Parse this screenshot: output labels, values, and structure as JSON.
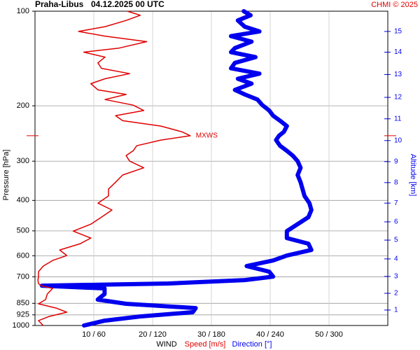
{
  "chart_data": {
    "type": "line",
    "title": "Praha-Libus",
    "subtitle": "04.12.2025 00 UTC",
    "credit": "CHMI © 2025",
    "y_label": "Pressure [hPa]",
    "y2_label": "Altitude [km]",
    "x_label": "WIND",
    "ylog": true,
    "grid": true,
    "ylim": [
      100,
      1000
    ],
    "yticks": [
      100,
      200,
      300,
      400,
      500,
      600,
      700,
      850,
      925,
      1000
    ],
    "xlim": [
      0,
      60
    ],
    "x2lim": [
      0,
      360
    ],
    "xticks": [
      {
        "value": 10,
        "label": "10 / 60"
      },
      {
        "value": 20,
        "label": "20 / 120"
      },
      {
        "value": 30,
        "label": "30 / 180"
      },
      {
        "value": 40,
        "label": "40 / 240"
      },
      {
        "value": 50,
        "label": "50 / 300"
      }
    ],
    "y2ticks": [
      {
        "value": 1,
        "pressure": 893
      },
      {
        "value": 2,
        "pressure": 790
      },
      {
        "value": 3,
        "pressure": 698
      },
      {
        "value": 4,
        "pressure": 614
      },
      {
        "value": 5,
        "pressure": 535
      },
      {
        "value": 6,
        "pressure": 468
      },
      {
        "value": 7,
        "pressure": 408
      },
      {
        "value": 8,
        "pressure": 351
      },
      {
        "value": 9,
        "pressure": 301
      },
      {
        "value": 10,
        "pressure": 258
      },
      {
        "value": 11,
        "pressure": 220
      },
      {
        "value": 12,
        "pressure": 188
      },
      {
        "value": 13,
        "pressure": 159
      },
      {
        "value": 14,
        "pressure": 135
      },
      {
        "value": 15,
        "pressure": 116
      }
    ],
    "annotation": {
      "text": "MXWS",
      "pressure": 249,
      "speed": 26.4,
      "color": "#e00000"
    },
    "y": [
      100,
      103,
      107,
      112,
      116,
      120,
      125,
      131,
      135,
      140,
      146,
      152,
      158,
      164,
      170,
      178,
      184,
      191,
      199,
      207,
      215,
      223,
      232,
      242,
      249,
      257,
      268,
      278,
      288,
      300,
      315,
      332,
      350,
      368,
      387,
      408,
      429,
      452,
      476,
      501,
      527,
      549,
      575,
      599,
      621,
      647,
      674,
      699,
      717,
      735,
      747,
      762,
      794,
      827,
      853,
      880,
      907,
      936,
      965,
      1000
    ],
    "series": [
      {
        "name": "Speed [m/s]",
        "color": "#e00000",
        "width": 1.5,
        "values": [
          15.7,
          17.9,
          15.5,
          11.9,
          7.4,
          11.9,
          19.0,
          14.3,
          8.3,
          11.9,
          10.7,
          11.3,
          16.1,
          11.9,
          9.5,
          10.7,
          15.5,
          11.9,
          16.7,
          18.5,
          13.7,
          14.9,
          21.4,
          25.0,
          26.4,
          21.4,
          17.3,
          16.7,
          15.5,
          16.1,
          18.5,
          14.9,
          13.7,
          12.5,
          12.5,
          10.7,
          13.1,
          11.3,
          9.5,
          6.5,
          9.5,
          7.7,
          4.2,
          5.4,
          3.0,
          1.4,
          0.6,
          0.6,
          0.5,
          0.6,
          1.0,
          3.0,
          2.1,
          1.8,
          0.6,
          3.6,
          5.4,
          2.4,
          0.6,
          1.4
        ]
      },
      {
        "name": "Direction [°]",
        "color": "#0000ee",
        "width": 6,
        "axis": "x2",
        "values": [
          213,
          220,
          207,
          214,
          229,
          200,
          221,
          204,
          200,
          225,
          204,
          200,
          229,
          207,
          221,
          204,
          214,
          227,
          232,
          239,
          243,
          250,
          257,
          254,
          249,
          246,
          250,
          257,
          263,
          268,
          271,
          268,
          271,
          273,
          275,
          280,
          282,
          279,
          268,
          257,
          257,
          279,
          282,
          257,
          243,
          216,
          239,
          243,
          214,
          136,
          7,
          71,
          71,
          64,
          93,
          164,
          161,
          107,
          71,
          50
        ]
      }
    ]
  }
}
